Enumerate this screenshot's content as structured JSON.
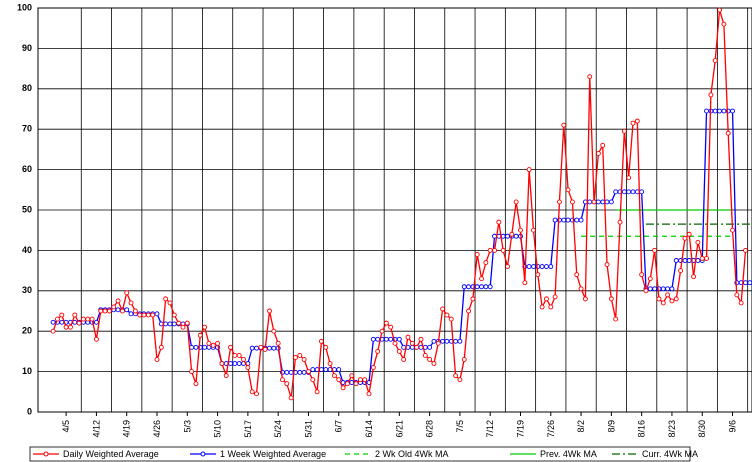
{
  "chart_data": {
    "type": "line",
    "categories": [
      null,
      null,
      null,
      null,
      null,
      null,
      "4/5",
      null,
      null,
      null,
      null,
      null,
      null,
      "4/12",
      null,
      null,
      null,
      null,
      null,
      null,
      "4/19",
      null,
      null,
      null,
      null,
      null,
      null,
      "4/26",
      null,
      null,
      null,
      null,
      null,
      null,
      "5/3",
      null,
      null,
      null,
      null,
      null,
      null,
      "5/10",
      null,
      null,
      null,
      null,
      null,
      null,
      "5/17",
      null,
      null,
      null,
      null,
      null,
      null,
      "5/24",
      null,
      null,
      null,
      null,
      null,
      null,
      "5/31",
      null,
      null,
      null,
      null,
      null,
      null,
      "6/7",
      null,
      null,
      null,
      null,
      null,
      null,
      "6/14",
      null,
      null,
      null,
      null,
      null,
      null,
      "6/21",
      null,
      null,
      null,
      null,
      null,
      null,
      "6/28",
      null,
      null,
      null,
      null,
      null,
      null,
      "7/5",
      null,
      null,
      null,
      null,
      null,
      null,
      "7/12",
      null,
      null,
      null,
      null,
      null,
      null,
      "7/19",
      null,
      null,
      null,
      null,
      null,
      null,
      "7/26",
      null,
      null,
      null,
      null,
      null,
      null,
      "8/2",
      null,
      null,
      null,
      null,
      null,
      null,
      "8/9",
      null,
      null,
      null,
      null,
      null,
      null,
      "8/16",
      null,
      null,
      null,
      null,
      null,
      null,
      "8/23",
      null,
      null,
      null,
      null,
      null,
      null,
      "8/30",
      null,
      null,
      null,
      null,
      null,
      null,
      "9/6",
      null,
      null,
      null,
      null
    ],
    "series": [
      {
        "name": "Daily Weighted Average",
        "color": "#ff0000",
        "style": "solid",
        "marker": "circle",
        "values": [
          null,
          null,
          null,
          20,
          23,
          24,
          21,
          21,
          24,
          22,
          23,
          23,
          23,
          18,
          25,
          25,
          25,
          26,
          27.5,
          25,
          29.5,
          27,
          25,
          24,
          24,
          24,
          24,
          13,
          16,
          28,
          27,
          24,
          22,
          21,
          22,
          10,
          7,
          19,
          21,
          17,
          16.5,
          17,
          12,
          9,
          16,
          14,
          14,
          13,
          11,
          5,
          4.5,
          16,
          15.5,
          25,
          20,
          17,
          8,
          7,
          3.5,
          13.5,
          14,
          13,
          10,
          8,
          5,
          17.5,
          16,
          12,
          9,
          8,
          6,
          7,
          9,
          7,
          8,
          8,
          4.5,
          11,
          15,
          20,
          22,
          21,
          17,
          15,
          13,
          18.5,
          17,
          16,
          18,
          14,
          13,
          12,
          17,
          25.5,
          24,
          23,
          9,
          8,
          13,
          25,
          28,
          39,
          33,
          37,
          40,
          40,
          47,
          40,
          36,
          44,
          52,
          45,
          32,
          60,
          45,
          34,
          26,
          28,
          26,
          28.5,
          52,
          71,
          55,
          52,
          34,
          30.5,
          28,
          83,
          52,
          64,
          66,
          36.5,
          28,
          23,
          47,
          69.5,
          58,
          71.5,
          72,
          34,
          30,
          33,
          40,
          28,
          27,
          29,
          27.5,
          28,
          35,
          43,
          44,
          33.5,
          42,
          38,
          38,
          78.5,
          87,
          99.5,
          96,
          69,
          45,
          29,
          27,
          40,
          null
        ]
      },
      {
        "name": "1 Week Weighted Average",
        "color": "#0000ff",
        "style": "solid",
        "marker": "circle",
        "values": [
          null,
          null,
          null,
          22.2,
          22.2,
          22.2,
          22.2,
          22.2,
          22.2,
          22.2,
          22.2,
          22.2,
          22.2,
          22.2,
          25.3,
          25.3,
          25.3,
          25.3,
          25.3,
          25.3,
          25.3,
          24.3,
          24.3,
          24.3,
          24.3,
          24.3,
          24.3,
          24.3,
          21.8,
          21.8,
          21.8,
          21.8,
          21.8,
          21.8,
          21.8,
          16,
          16,
          16,
          16,
          16,
          16,
          16,
          12,
          12,
          12,
          12,
          12,
          12,
          12,
          15.8,
          15.8,
          15.8,
          15.8,
          15.8,
          15.8,
          15.8,
          9.8,
          9.8,
          9.8,
          9.8,
          9.8,
          9.8,
          9.8,
          10.5,
          10.5,
          10.5,
          10.5,
          10.5,
          10.5,
          10.5,
          7.3,
          7.3,
          7.3,
          7.3,
          7.3,
          7.3,
          7.3,
          18,
          18,
          18,
          18,
          18,
          18,
          18,
          16,
          16,
          16,
          16,
          16,
          16,
          16,
          17.5,
          17.5,
          17.5,
          17.5,
          17.5,
          17.5,
          17.5,
          31,
          31,
          31,
          31,
          31,
          31,
          31,
          43.5,
          43.5,
          43.5,
          43.5,
          43.5,
          43.5,
          43.5,
          36,
          36,
          36,
          36,
          36,
          36,
          36,
          47.5,
          47.5,
          47.5,
          47.5,
          47.5,
          47.5,
          47.5,
          52,
          52,
          52,
          52,
          52,
          52,
          52,
          54.5,
          54.5,
          54.5,
          54.5,
          54.5,
          54.5,
          54.5,
          30.5,
          30.5,
          30.5,
          30.5,
          30.5,
          30.5,
          30.5,
          37.5,
          37.5,
          37.5,
          37.5,
          37.5,
          37.5,
          37.5,
          74.5,
          74.5,
          74.5,
          74.5,
          74.5,
          74.5,
          74.5,
          32,
          32,
          32,
          32
        ]
      },
      {
        "name": "2 Wk Old 4Wk MA",
        "color": "#00cc00",
        "style": "dashed",
        "values": [
          null,
          null,
          null,
          null,
          null,
          null,
          null,
          null,
          null,
          null,
          null,
          null,
          null,
          null,
          null,
          null,
          null,
          null,
          null,
          null,
          null,
          null,
          null,
          null,
          null,
          null,
          null,
          null,
          null,
          null,
          null,
          null,
          null,
          null,
          null,
          null,
          null,
          null,
          null,
          null,
          null,
          null,
          null,
          null,
          null,
          null,
          null,
          null,
          null,
          null,
          null,
          null,
          null,
          null,
          null,
          null,
          null,
          null,
          null,
          null,
          null,
          null,
          null,
          null,
          null,
          null,
          null,
          null,
          null,
          null,
          null,
          null,
          null,
          null,
          null,
          null,
          null,
          null,
          null,
          null,
          null,
          null,
          null,
          null,
          null,
          null,
          null,
          null,
          null,
          null,
          null,
          null,
          null,
          null,
          null,
          null,
          null,
          null,
          null,
          null,
          null,
          null,
          null,
          null,
          null,
          null,
          null,
          null,
          null,
          null,
          null,
          null,
          null,
          null,
          null,
          null,
          null,
          null,
          null,
          null,
          null,
          null,
          null,
          null,
          null,
          43.5,
          43.5,
          43.5,
          43.5,
          43.5,
          43.5,
          43.5,
          43.5,
          43.5,
          43.5,
          43.5,
          43.5,
          43.5,
          43.5,
          43.5,
          43.5,
          43.5,
          43.5,
          43.5,
          43.5,
          43.5,
          43.5,
          43.5,
          43.5,
          43.5,
          43.5,
          43.5,
          43.5,
          43.5,
          43.5,
          43.5,
          43.5,
          43.5,
          43.5,
          43.5,
          43.5,
          null,
          null,
          null,
          null
        ]
      },
      {
        "name": "Prev. 4Wk MA",
        "color": "#00cc00",
        "style": "solid",
        "values": [
          null,
          null,
          null,
          null,
          null,
          null,
          null,
          null,
          null,
          null,
          null,
          null,
          null,
          null,
          null,
          null,
          null,
          null,
          null,
          null,
          null,
          null,
          null,
          null,
          null,
          null,
          null,
          null,
          null,
          null,
          null,
          null,
          null,
          null,
          null,
          null,
          null,
          null,
          null,
          null,
          null,
          null,
          null,
          null,
          null,
          null,
          null,
          null,
          null,
          null,
          null,
          null,
          null,
          null,
          null,
          null,
          null,
          null,
          null,
          null,
          null,
          null,
          null,
          null,
          null,
          null,
          null,
          null,
          null,
          null,
          null,
          null,
          null,
          null,
          null,
          null,
          null,
          null,
          null,
          null,
          null,
          null,
          null,
          null,
          null,
          null,
          null,
          null,
          null,
          null,
          null,
          null,
          null,
          null,
          null,
          null,
          null,
          null,
          null,
          null,
          null,
          null,
          null,
          null,
          null,
          null,
          null,
          null,
          null,
          null,
          null,
          null,
          null,
          null,
          null,
          null,
          null,
          null,
          null,
          null,
          null,
          null,
          null,
          null,
          null,
          null,
          null,
          null,
          null,
          null,
          null,
          null,
          null,
          50,
          50,
          50,
          50,
          50,
          50,
          50,
          50,
          50,
          50,
          50,
          50,
          50,
          50,
          50,
          50,
          50,
          50,
          50,
          50,
          50,
          50,
          50,
          50,
          50,
          50,
          50,
          50,
          null,
          null,
          null,
          null
        ]
      },
      {
        "name": "Curr. 4Wk MA",
        "color": "#006600",
        "style": "dashdot",
        "values": [
          null,
          null,
          null,
          null,
          null,
          null,
          null,
          null,
          null,
          null,
          null,
          null,
          null,
          null,
          null,
          null,
          null,
          null,
          null,
          null,
          null,
          null,
          null,
          null,
          null,
          null,
          null,
          null,
          null,
          null,
          null,
          null,
          null,
          null,
          null,
          null,
          null,
          null,
          null,
          null,
          null,
          null,
          null,
          null,
          null,
          null,
          null,
          null,
          null,
          null,
          null,
          null,
          null,
          null,
          null,
          null,
          null,
          null,
          null,
          null,
          null,
          null,
          null,
          null,
          null,
          null,
          null,
          null,
          null,
          null,
          null,
          null,
          null,
          null,
          null,
          null,
          null,
          null,
          null,
          null,
          null,
          null,
          null,
          null,
          null,
          null,
          null,
          null,
          null,
          null,
          null,
          null,
          null,
          null,
          null,
          null,
          null,
          null,
          null,
          null,
          null,
          null,
          null,
          null,
          null,
          null,
          null,
          null,
          null,
          null,
          null,
          null,
          null,
          null,
          null,
          null,
          null,
          null,
          null,
          null,
          null,
          null,
          null,
          null,
          null,
          null,
          null,
          null,
          null,
          null,
          null,
          null,
          null,
          null,
          null,
          null,
          null,
          null,
          null,
          null,
          46.5,
          46.5,
          46.5,
          46.5,
          46.5,
          46.5,
          46.5,
          46.5,
          46.5,
          46.5,
          46.5,
          46.5,
          46.5,
          46.5,
          46.5,
          46.5,
          46.5,
          46.5,
          46.5,
          46.5,
          46.5,
          46.5,
          46.5,
          46.5,
          46.5
        ]
      }
    ],
    "ylim": [
      0,
      100
    ],
    "yticks": [
      0,
      10,
      20,
      30,
      40,
      50,
      60,
      70,
      80,
      90,
      100
    ],
    "grid": true,
    "legend": "bottom"
  }
}
